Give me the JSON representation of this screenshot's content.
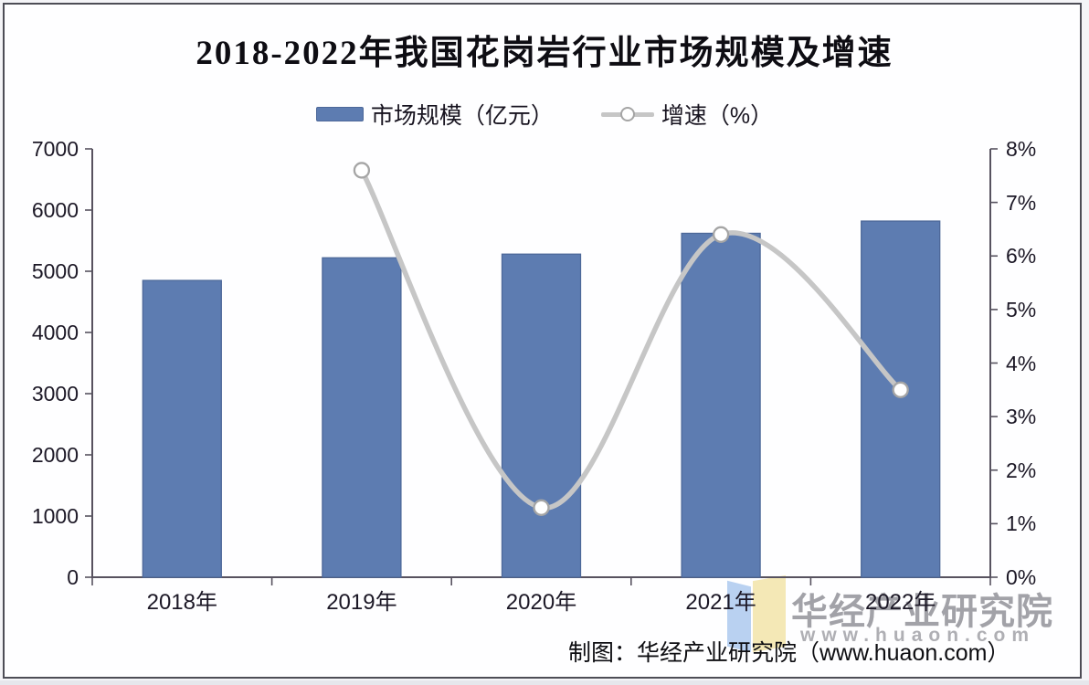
{
  "title": "2018-2022年我国花岗岩行业市场规模及增速",
  "legend": {
    "items": [
      {
        "label": "市场规模（亿元）",
        "swatch": "bar",
        "color": "#5d7cb1"
      },
      {
        "label": "增速（%）",
        "swatch": "line-marker",
        "color": "#c6c6c6"
      }
    ]
  },
  "chart_data": {
    "type": "bar+line",
    "title": "2018-2022年我国花岗岩行业市场规模及增速",
    "categories": [
      "2018年",
      "2019年",
      "2020年",
      "2021年",
      "2022年"
    ],
    "series": [
      {
        "name": "市场规模（亿元）",
        "type": "bar",
        "axis": "left",
        "values": [
          4850,
          5220,
          5280,
          5620,
          5820
        ],
        "color": "#5d7cb1",
        "border_color": "#4d6899"
      },
      {
        "name": "增速（%）",
        "type": "line",
        "axis": "right",
        "values": [
          null,
          7.6,
          1.3,
          6.4,
          3.5
        ],
        "color": "#c6c6c6",
        "marker": "white-circle",
        "marker_stroke": "#a5a5a5",
        "smooth": true
      }
    ],
    "y_left": {
      "min": 0,
      "max": 7000,
      "step": 1000,
      "ticks": [
        "0",
        "1000",
        "2000",
        "3000",
        "4000",
        "5000",
        "6000",
        "7000"
      ]
    },
    "y_right": {
      "min": 0,
      "max": 8,
      "step": 1,
      "ticks": [
        "0%",
        "1%",
        "2%",
        "3%",
        "4%",
        "5%",
        "6%",
        "7%",
        "8%"
      ]
    },
    "grid": false,
    "legend_position": "top",
    "axis_color": "#57525f"
  },
  "watermark": {
    "brand": "华经产业研究院",
    "url": "www.huaon.com",
    "logo_colors": {
      "left": "#a9c7ee",
      "right": "#f2e3a4"
    }
  },
  "attribution": {
    "text": "制图：华经产业研究院（www.huaon.com）"
  }
}
